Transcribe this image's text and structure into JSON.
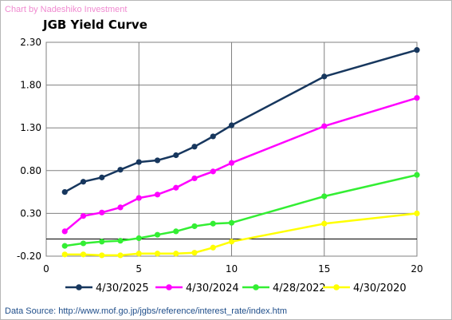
{
  "header": {
    "credit": "Chart by Nadeshiko Investment",
    "title": "JGB Yield Curve"
  },
  "footer": {
    "source": "Data Source: http://www.mof.go.jp/jgbs/reference/interest_rate/index.htm"
  },
  "chart_data": {
    "type": "line",
    "title": "JGB Yield Curve",
    "xlabel": "",
    "ylabel": "",
    "xlim": [
      0,
      20
    ],
    "ylim": [
      -0.2,
      2.3
    ],
    "x_ticks": [
      0,
      5,
      10,
      15,
      20
    ],
    "y_ticks": [
      -0.2,
      0.3,
      0.8,
      1.3,
      1.8,
      2.3
    ],
    "y_tick_labels": [
      "-0.20",
      "0.30",
      "0.80",
      "1.30",
      "1.80",
      "2.30"
    ],
    "zero_line": 0,
    "grid": true,
    "legend_position": "bottom",
    "series": [
      {
        "name": "4/30/2025",
        "color": "#17375e",
        "x": [
          1,
          2,
          3,
          4,
          5,
          6,
          7,
          8,
          9,
          10,
          15,
          20
        ],
        "y": [
          0.55,
          0.67,
          0.72,
          0.81,
          0.9,
          0.92,
          0.98,
          1.08,
          1.2,
          1.33,
          1.9,
          2.21
        ]
      },
      {
        "name": "4/30/2024",
        "color": "#ff00ff",
        "x": [
          1,
          2,
          3,
          4,
          5,
          6,
          7,
          8,
          9,
          10,
          15,
          20
        ],
        "y": [
          0.09,
          0.27,
          0.31,
          0.37,
          0.48,
          0.52,
          0.6,
          0.71,
          0.79,
          0.89,
          1.32,
          1.65
        ]
      },
      {
        "name": "4/28/2022",
        "color": "#33ee33",
        "x": [
          1,
          2,
          3,
          4,
          5,
          6,
          7,
          8,
          9,
          10,
          15,
          20
        ],
        "y": [
          -0.08,
          -0.05,
          -0.03,
          -0.02,
          0.01,
          0.05,
          0.09,
          0.15,
          0.18,
          0.19,
          0.5,
          0.75
        ]
      },
      {
        "name": "4/30/2020",
        "color": "#ffff00",
        "x": [
          1,
          2,
          3,
          4,
          5,
          6,
          7,
          8,
          9,
          10,
          15,
          20
        ],
        "y": [
          -0.18,
          -0.18,
          -0.19,
          -0.19,
          -0.17,
          -0.17,
          -0.17,
          -0.16,
          -0.1,
          -0.03,
          0.18,
          0.3
        ]
      }
    ]
  }
}
